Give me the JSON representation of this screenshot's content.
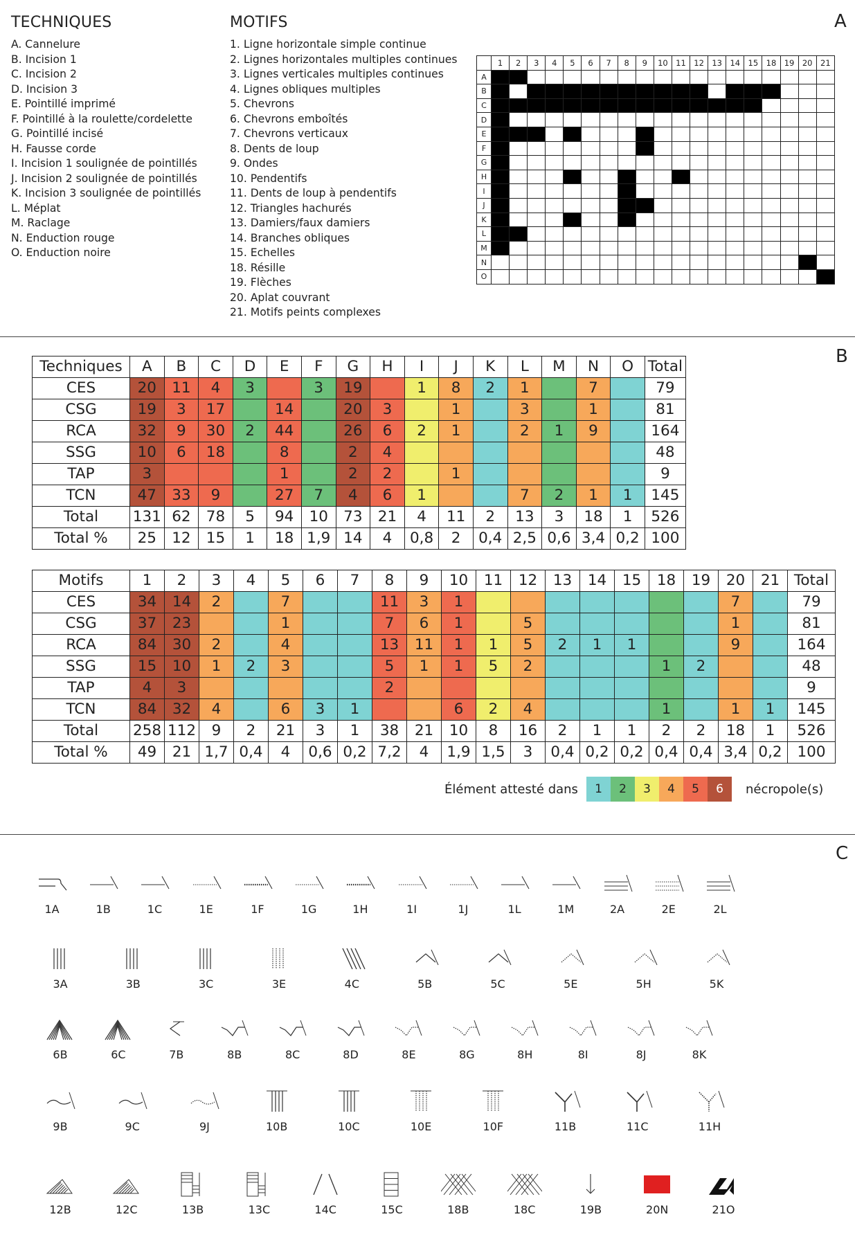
{
  "section_labels": {
    "a": "A",
    "b": "B",
    "c": "C"
  },
  "techniques_heading": "TECHNIQUES",
  "motifs_heading": "MOTIFS",
  "techniques_list": [
    "A. Cannelure",
    "B. Incision 1",
    "C. Incision 2",
    "D. Incision 3",
    "E. Pointillé imprimé",
    "F. Pointillé à la roulette/cordelette",
    "G. Pointillé incisé",
    "H. Fausse corde",
    "I. Incision 1 soulignée de pointillés",
    "J. Incision 2 soulignée de pointillés",
    "K. Incision 3 soulignée de pointillés",
    "L. Méplat",
    "M. Raclage",
    "N. Enduction rouge",
    "O. Enduction noire"
  ],
  "motifs_list": [
    "1. Ligne horizontale simple continue",
    "2. Lignes horizontales multiples continues",
    "3. Lignes verticales multiples continues",
    "4. Lignes obliques multiples",
    "5. Chevrons",
    "6. Chevrons emboîtés",
    "7. Chevrons verticaux",
    "8. Dents de loup",
    "9. Ondes",
    "10. Pendentifs",
    "11. Dents de loup à pendentifs",
    "12. Triangles hachurés",
    "13. Damiers/faux damiers",
    "14. Branches obliques",
    "15. Echelles",
    "18. Résille",
    "19. Flèches",
    "20. Aplat couvrant",
    "21. Motifs peints complexes"
  ],
  "matrix": {
    "columns": [
      "1",
      "2",
      "3",
      "4",
      "5",
      "6",
      "7",
      "8",
      "9",
      "10",
      "11",
      "12",
      "13",
      "14",
      "15",
      "18",
      "19",
      "20",
      "21"
    ],
    "rows": [
      "A",
      "B",
      "C",
      "D",
      "E",
      "F",
      "G",
      "H",
      "I",
      "J",
      "K",
      "L",
      "M",
      "N",
      "O"
    ],
    "filled": {
      "A": [
        "1",
        "2"
      ],
      "B": [
        "1",
        "3",
        "4",
        "5",
        "6",
        "7",
        "8",
        "9",
        "10",
        "11",
        "12",
        "14",
        "15",
        "18"
      ],
      "C": [
        "1",
        "2",
        "3",
        "4",
        "5",
        "6",
        "7",
        "8",
        "9",
        "10",
        "11",
        "12",
        "13",
        "14",
        "15"
      ],
      "D": [
        "1"
      ],
      "E": [
        "1",
        "2",
        "3",
        "5",
        "9"
      ],
      "F": [
        "1",
        "9"
      ],
      "G": [
        "1"
      ],
      "H": [
        "1",
        "5",
        "8",
        "11"
      ],
      "I": [
        "1",
        "8"
      ],
      "J": [
        "1",
        "8",
        "9"
      ],
      "K": [
        "1",
        "5",
        "8"
      ],
      "L": [
        "1",
        "2"
      ],
      "M": [
        "1"
      ],
      "N": [
        "20"
      ],
      "O": [
        "21"
      ]
    }
  },
  "techniques_table": {
    "header": [
      "Techniques",
      "A",
      "B",
      "C",
      "D",
      "E",
      "F",
      "G",
      "H",
      "I",
      "J",
      "K",
      "L",
      "M",
      "N",
      "O",
      "Total"
    ],
    "rows": [
      {
        "label": "CES",
        "cells": [
          [
            "20",
            6
          ],
          [
            "11",
            5
          ],
          [
            "4",
            5
          ],
          [
            "3",
            2
          ],
          [
            "",
            5
          ],
          [
            "3",
            2
          ],
          [
            "19",
            6
          ],
          [
            "",
            5
          ],
          [
            "1",
            3
          ],
          [
            "8",
            4
          ],
          [
            "2",
            1
          ],
          [
            "1",
            4
          ],
          [
            "",
            2
          ],
          [
            "7",
            4
          ],
          [
            "",
            1
          ]
        ],
        "total": "79"
      },
      {
        "label": "CSG",
        "cells": [
          [
            "19",
            6
          ],
          [
            "3",
            5
          ],
          [
            "17",
            5
          ],
          [
            "",
            2
          ],
          [
            "14",
            5
          ],
          [
            "",
            2
          ],
          [
            "20",
            6
          ],
          [
            "3",
            5
          ],
          [
            "",
            3
          ],
          [
            "1",
            4
          ],
          [
            "",
            1
          ],
          [
            "3",
            4
          ],
          [
            "",
            2
          ],
          [
            "1",
            4
          ],
          [
            "",
            1
          ]
        ],
        "total": "81"
      },
      {
        "label": "RCA",
        "cells": [
          [
            "32",
            6
          ],
          [
            "9",
            5
          ],
          [
            "30",
            5
          ],
          [
            "2",
            2
          ],
          [
            "44",
            5
          ],
          [
            "",
            2
          ],
          [
            "26",
            6
          ],
          [
            "6",
            5
          ],
          [
            "2",
            3
          ],
          [
            "1",
            4
          ],
          [
            "",
            1
          ],
          [
            "2",
            4
          ],
          [
            "1",
            2
          ],
          [
            "9",
            4
          ],
          [
            "",
            1
          ]
        ],
        "total": "164"
      },
      {
        "label": "SSG",
        "cells": [
          [
            "10",
            6
          ],
          [
            "6",
            5
          ],
          [
            "18",
            5
          ],
          [
            "",
            2
          ],
          [
            "8",
            5
          ],
          [
            "",
            2
          ],
          [
            "2",
            6
          ],
          [
            "4",
            5
          ],
          [
            "",
            3
          ],
          [
            "",
            4
          ],
          [
            "",
            1
          ],
          [
            "",
            4
          ],
          [
            "",
            2
          ],
          [
            "",
            4
          ],
          [
            "",
            1
          ]
        ],
        "total": "48"
      },
      {
        "label": "TAP",
        "cells": [
          [
            "3",
            6
          ],
          [
            "",
            5
          ],
          [
            "",
            5
          ],
          [
            "",
            2
          ],
          [
            "1",
            5
          ],
          [
            "",
            2
          ],
          [
            "2",
            6
          ],
          [
            "2",
            5
          ],
          [
            "",
            3
          ],
          [
            "1",
            4
          ],
          [
            "",
            1
          ],
          [
            "",
            4
          ],
          [
            "",
            2
          ],
          [
            "",
            4
          ],
          [
            "",
            1
          ]
        ],
        "total": "9"
      },
      {
        "label": "TCN",
        "cells": [
          [
            "47",
            6
          ],
          [
            "33",
            5
          ],
          [
            "9",
            5
          ],
          [
            "",
            2
          ],
          [
            "27",
            5
          ],
          [
            "7",
            2
          ],
          [
            "4",
            6
          ],
          [
            "6",
            5
          ],
          [
            "1",
            3
          ],
          [
            "",
            4
          ],
          [
            "",
            1
          ],
          [
            "7",
            4
          ],
          [
            "2",
            2
          ],
          [
            "1",
            4
          ],
          [
            "1",
            1
          ]
        ],
        "total": "145"
      }
    ],
    "total_row": [
      "Total",
      "131",
      "62",
      "78",
      "5",
      "94",
      "10",
      "73",
      "21",
      "4",
      "11",
      "2",
      "13",
      "3",
      "18",
      "1",
      "526"
    ],
    "percent_row": [
      "Total %",
      "25",
      "12",
      "15",
      "1",
      "18",
      "1,9",
      "14",
      "4",
      "0,8",
      "2",
      "0,4",
      "2,5",
      "0,6",
      "3,4",
      "0,2",
      "100"
    ]
  },
  "motifs_table": {
    "header": [
      "Motifs",
      "1",
      "2",
      "3",
      "4",
      "5",
      "6",
      "7",
      "8",
      "9",
      "10",
      "11",
      "12",
      "13",
      "14",
      "15",
      "18",
      "19",
      "20",
      "21",
      "Total"
    ],
    "rows": [
      {
        "label": "CES",
        "cells": [
          [
            "34",
            6
          ],
          [
            "14",
            6
          ],
          [
            "2",
            4
          ],
          [
            "",
            1
          ],
          [
            "7",
            4
          ],
          [
            "",
            1
          ],
          [
            "",
            1
          ],
          [
            "11",
            5
          ],
          [
            "3",
            4
          ],
          [
            "1",
            5
          ],
          [
            "",
            3
          ],
          [
            "",
            4
          ],
          [
            "",
            1
          ],
          [
            "",
            1
          ],
          [
            "",
            1
          ],
          [
            "",
            2
          ],
          [
            "",
            1
          ],
          [
            "7",
            4
          ],
          [
            "",
            1
          ]
        ],
        "total": "79"
      },
      {
        "label": "CSG",
        "cells": [
          [
            "37",
            6
          ],
          [
            "23",
            6
          ],
          [
            "",
            4
          ],
          [
            "",
            1
          ],
          [
            "1",
            4
          ],
          [
            "",
            1
          ],
          [
            "",
            1
          ],
          [
            "7",
            5
          ],
          [
            "6",
            4
          ],
          [
            "1",
            5
          ],
          [
            "",
            3
          ],
          [
            "5",
            4
          ],
          [
            "",
            1
          ],
          [
            "",
            1
          ],
          [
            "",
            1
          ],
          [
            "",
            2
          ],
          [
            "",
            1
          ],
          [
            "1",
            4
          ],
          [
            "",
            1
          ]
        ],
        "total": "81"
      },
      {
        "label": "RCA",
        "cells": [
          [
            "84",
            6
          ],
          [
            "30",
            6
          ],
          [
            "2",
            4
          ],
          [
            "",
            1
          ],
          [
            "4",
            4
          ],
          [
            "",
            1
          ],
          [
            "",
            1
          ],
          [
            "13",
            5
          ],
          [
            "11",
            4
          ],
          [
            "1",
            5
          ],
          [
            "1",
            3
          ],
          [
            "5",
            4
          ],
          [
            "2",
            1
          ],
          [
            "1",
            1
          ],
          [
            "1",
            1
          ],
          [
            "",
            2
          ],
          [
            "",
            1
          ],
          [
            "9",
            4
          ],
          [
            "",
            1
          ]
        ],
        "total": "164"
      },
      {
        "label": "SSG",
        "cells": [
          [
            "15",
            6
          ],
          [
            "10",
            6
          ],
          [
            "1",
            4
          ],
          [
            "2",
            1
          ],
          [
            "3",
            4
          ],
          [
            "",
            1
          ],
          [
            "",
            1
          ],
          [
            "5",
            5
          ],
          [
            "1",
            4
          ],
          [
            "1",
            5
          ],
          [
            "5",
            3
          ],
          [
            "2",
            4
          ],
          [
            "",
            1
          ],
          [
            "",
            1
          ],
          [
            "",
            1
          ],
          [
            "1",
            2
          ],
          [
            "2",
            1
          ],
          [
            "",
            4
          ],
          [
            "",
            1
          ]
        ],
        "total": "48"
      },
      {
        "label": "TAP",
        "cells": [
          [
            "4",
            6
          ],
          [
            "3",
            6
          ],
          [
            "",
            4
          ],
          [
            "",
            1
          ],
          [
            "",
            4
          ],
          [
            "",
            1
          ],
          [
            "",
            1
          ],
          [
            "2",
            5
          ],
          [
            "",
            4
          ],
          [
            "",
            5
          ],
          [
            "",
            3
          ],
          [
            "",
            4
          ],
          [
            "",
            1
          ],
          [
            "",
            1
          ],
          [
            "",
            1
          ],
          [
            "",
            2
          ],
          [
            "",
            1
          ],
          [
            "",
            4
          ],
          [
            "",
            1
          ]
        ],
        "total": "9"
      },
      {
        "label": "TCN",
        "cells": [
          [
            "84",
            6
          ],
          [
            "32",
            6
          ],
          [
            "4",
            4
          ],
          [
            "",
            1
          ],
          [
            "6",
            4
          ],
          [
            "3",
            1
          ],
          [
            "1",
            1
          ],
          [
            "",
            5
          ],
          [
            "",
            4
          ],
          [
            "6",
            5
          ],
          [
            "2",
            3
          ],
          [
            "4",
            4
          ],
          [
            "",
            1
          ],
          [
            "",
            1
          ],
          [
            "",
            1
          ],
          [
            "1",
            2
          ],
          [
            "",
            1
          ],
          [
            "1",
            4
          ],
          [
            "1",
            1
          ]
        ],
        "total": "145"
      }
    ],
    "total_row": [
      "Total",
      "258",
      "112",
      "9",
      "2",
      "21",
      "3",
      "1",
      "38",
      "21",
      "10",
      "8",
      "16",
      "2",
      "1",
      "1",
      "2",
      "2",
      "18",
      "1",
      "526"
    ],
    "percent_row": [
      "Total %",
      "49",
      "21",
      "1,7",
      "0,4",
      "4",
      "0,6",
      "0,2",
      "7,2",
      "4",
      "1,9",
      "1,5",
      "3",
      "0,4",
      "0,2",
      "0,2",
      "0,4",
      "0,4",
      "3,4",
      "0,2",
      "100"
    ]
  },
  "legend": {
    "prefix": "Élément attesté dans",
    "suffix": "nécropole(s)",
    "values": [
      "1",
      "2",
      "3",
      "4",
      "5",
      "6"
    ],
    "colors": [
      "#7fd3d3",
      "#6cc07a",
      "#f0ee6d",
      "#f7a85a",
      "#ee6a4f",
      "#b4523a"
    ]
  },
  "symbol_rows": [
    [
      "1A",
      "1B",
      "1C",
      "1E",
      "1F",
      "1G",
      "1H",
      "1I",
      "1J",
      "1L",
      "1M",
      "2A",
      "2E",
      "2L"
    ],
    [
      "3A",
      "3B",
      "3C",
      "3E",
      "4C",
      "5B",
      "5C",
      "5E",
      "5H",
      "5K"
    ],
    [
      "6B",
      "6C",
      "7B",
      "8B",
      "8C",
      "8D",
      "8E",
      "8G",
      "8H",
      "8I",
      "8J",
      "8K"
    ],
    [
      "9B",
      "9C",
      "9J",
      "10B",
      "10C",
      "10E",
      "10F",
      "11B",
      "11C",
      "11H"
    ],
    [
      "12B",
      "12C",
      "13B",
      "13C",
      "14C",
      "15C",
      "18B",
      "18C",
      "19B",
      "20N",
      "21O"
    ]
  ],
  "symbol_colors": {
    "stroke": "#333333",
    "aplat": "#e02020",
    "dark": "#111111"
  }
}
